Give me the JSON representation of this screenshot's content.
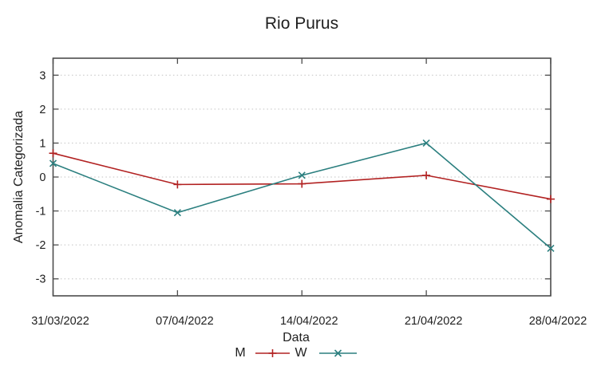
{
  "chart_data": {
    "type": "line",
    "title": "Rio Purus",
    "xlabel": "Data",
    "ylabel": "Anomalia Categorizada",
    "categories": [
      "31/03/2022",
      "07/04/2022",
      "14/04/2022",
      "21/04/2022",
      "28/04/2022"
    ],
    "series": [
      {
        "name": "M",
        "color": "#b22222",
        "marker": "plus",
        "values": [
          0.7,
          -0.22,
          -0.2,
          0.05,
          -0.65
        ]
      },
      {
        "name": "W",
        "color": "#2b7f7f",
        "marker": "x",
        "values": [
          0.4,
          -1.05,
          0.05,
          1.0,
          -2.1
        ]
      }
    ],
    "yticks": [
      -3,
      -2,
      -1,
      0,
      1,
      2,
      3
    ],
    "ylim": [
      -3.5,
      3.5
    ],
    "grid": "horizontal-dotted",
    "legend_position": "bottom-center",
    "colors": {
      "grid": "#c2c2c2",
      "border": "#4d4d4d",
      "text": "#1f1f1f",
      "background": "#ffffff"
    }
  }
}
